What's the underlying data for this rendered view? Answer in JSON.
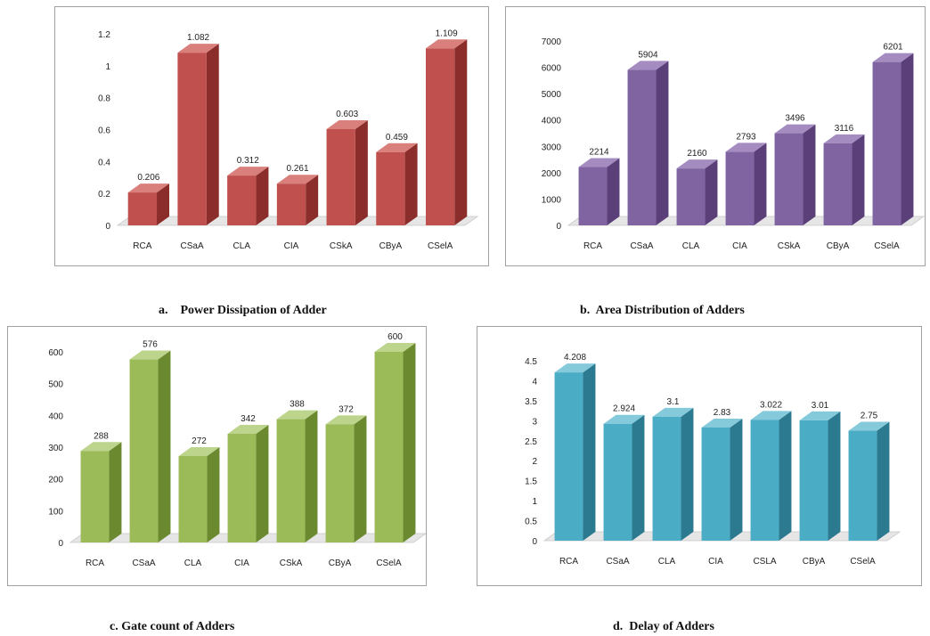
{
  "chart_data": [
    {
      "type": "bar",
      "title": "",
      "caption": "a.    Power Dissipation of Adder",
      "categories": [
        "RCA",
        "CSaA",
        "CLA",
        "CIA",
        "CSkA",
        "CByA",
        "CSelA"
      ],
      "values": [
        0.206,
        1.082,
        0.312,
        0.261,
        0.603,
        0.459,
        1.109
      ],
      "value_labels": [
        "0.206",
        "1.082",
        "0.312",
        "0.261",
        "0.603",
        "0.459",
        "1.109"
      ],
      "yticks": [
        "0",
        "0.2",
        "0.4",
        "0.6",
        "0.8",
        "1",
        "1.2"
      ],
      "ylim": [
        0,
        1.2
      ],
      "colors": {
        "front": "#c0504d",
        "side": "#8b2e2b",
        "top": "#d9807d"
      }
    },
    {
      "type": "bar",
      "title": "",
      "caption": "b.  Area Distribution of Adders",
      "categories": [
        "RCA",
        "CSaA",
        "CLA",
        "CIA",
        "CSkA",
        "CByA",
        "CSelA"
      ],
      "values": [
        2214,
        5904,
        2160,
        2793,
        3496,
        3116,
        6201
      ],
      "value_labels": [
        "2214",
        "5904",
        "2160",
        "2793",
        "3496",
        "3116",
        "6201"
      ],
      "yticks": [
        "0",
        "1000",
        "2000",
        "3000",
        "4000",
        "5000",
        "6000",
        "7000"
      ],
      "ylim": [
        0,
        7000
      ],
      "colors": {
        "front": "#8064a2",
        "side": "#5a3f78",
        "top": "#a48cc0"
      }
    },
    {
      "type": "bar",
      "title": "",
      "caption": "c. Gate count of Adders",
      "categories": [
        "RCA",
        "CSaA",
        "CLA",
        "CIA",
        "CSkA",
        "CByA",
        "CSelA"
      ],
      "values": [
        288,
        576,
        272,
        342,
        388,
        372,
        600
      ],
      "value_labels": [
        "288",
        "576",
        "272",
        "342",
        "388",
        "372",
        "600"
      ],
      "yticks": [
        "0",
        "100",
        "200",
        "300",
        "400",
        "500",
        "600"
      ],
      "ylim": [
        0,
        600
      ],
      "colors": {
        "front": "#9bbb59",
        "side": "#6b8a30",
        "top": "#bcd48c"
      }
    },
    {
      "type": "bar",
      "title": "",
      "caption": "d.  Delay of Adders",
      "categories": [
        "RCA",
        "CSaA",
        "CLA",
        "CIA",
        "CSLA",
        "CByA",
        "CSelA"
      ],
      "values": [
        4.208,
        2.924,
        3.1,
        2.83,
        3.022,
        3.01,
        2.75
      ],
      "value_labels": [
        "4.208",
        "2.924",
        "3.1",
        "2.83",
        "3.022",
        "3.01",
        "2.75"
      ],
      "yticks": [
        "0",
        "0.5",
        "1",
        "1.5",
        "2",
        "2.5",
        "3",
        "3.5",
        "4",
        "4.5"
      ],
      "ylim": [
        0,
        4.5
      ],
      "colors": {
        "front": "#4bacc6",
        "side": "#2b7a90",
        "top": "#85cadb"
      }
    }
  ]
}
